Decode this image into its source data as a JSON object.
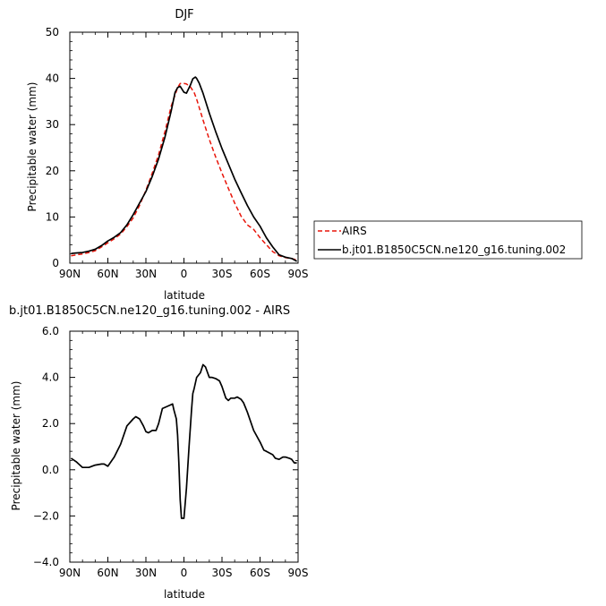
{
  "chart_data": [
    {
      "type": "line",
      "title": "DJF",
      "xlabel": "latitude",
      "ylabel": "Precipitable water (mm)",
      "x_ticks": [
        "90N",
        "60N",
        "30N",
        "0",
        "30S",
        "60S",
        "90S"
      ],
      "x_tick_values": [
        -90,
        -60,
        -30,
        0,
        30,
        60,
        90
      ],
      "xlim": [
        -90,
        90
      ],
      "ylim": [
        0,
        50
      ],
      "y_ticks": [
        0,
        10,
        20,
        30,
        40,
        50
      ],
      "y_tick_labels": [
        "0",
        "10",
        "20",
        "30",
        "40",
        "50"
      ],
      "grid": false,
      "legend_placement": "right",
      "series": [
        {
          "name": "AIRS",
          "color": "#e8150a",
          "style": "dashed",
          "x": [
            -89,
            -85,
            -80,
            -75,
            -70,
            -65,
            -60,
            -55,
            -50,
            -45,
            -40,
            -35,
            -30,
            -25,
            -20,
            -15,
            -10,
            -5,
            -3,
            0,
            2,
            5,
            8,
            10,
            15,
            20,
            25,
            30,
            35,
            40,
            45,
            50,
            55,
            60,
            65,
            70,
            75,
            80,
            85,
            89
          ],
          "y": [
            1.6,
            1.8,
            2.0,
            2.3,
            2.7,
            3.5,
            4.4,
            5.3,
            6.3,
            7.9,
            9.8,
            12.5,
            15.8,
            19.5,
            23.5,
            28.5,
            34.0,
            38.0,
            38.9,
            38.9,
            38.8,
            38.2,
            37.0,
            35.5,
            31.0,
            26.8,
            23.0,
            19.5,
            16.2,
            13.0,
            10.2,
            8.3,
            7.3,
            5.5,
            4.0,
            2.5,
            1.6,
            1.2,
            1.0,
            0.7
          ]
        },
        {
          "name": "b.jt01.B1850C5CN.ne120_g16.tuning.002",
          "color": "#000000",
          "style": "solid",
          "x": [
            -89,
            -85,
            -80,
            -75,
            -70,
            -65,
            -60,
            -55,
            -50,
            -45,
            -40,
            -35,
            -30,
            -25,
            -20,
            -15,
            -10,
            -7,
            -5,
            -3,
            0,
            2,
            5,
            7,
            9,
            10,
            12,
            15,
            20,
            25,
            30,
            35,
            40,
            45,
            50,
            55,
            60,
            65,
            70,
            75,
            80,
            85,
            89
          ],
          "y": [
            2.1,
            2.2,
            2.3,
            2.6,
            3.0,
            3.8,
            4.8,
            5.6,
            6.6,
            8.3,
            10.5,
            13.0,
            15.5,
            18.8,
            22.6,
            27.3,
            33.0,
            37.0,
            38.0,
            38.3,
            37.0,
            36.8,
            38.5,
            39.9,
            40.3,
            40.0,
            39.0,
            36.8,
            32.5,
            28.5,
            24.8,
            21.5,
            18.2,
            15.3,
            12.5,
            10.0,
            8.0,
            5.5,
            3.5,
            1.8,
            1.3,
            1.0,
            0.4
          ]
        }
      ]
    },
    {
      "type": "line",
      "title": "b.jt01.B1850C5CN.ne120_g16.tuning.002 - AIRS",
      "xlabel": "latitude",
      "ylabel": "Precipitable water (mm)",
      "x_ticks": [
        "90N",
        "60N",
        "30N",
        "0",
        "30S",
        "60S",
        "90S"
      ],
      "x_tick_values": [
        -90,
        -60,
        -30,
        0,
        30,
        60,
        90
      ],
      "xlim": [
        -90,
        90
      ],
      "ylim": [
        -4,
        6
      ],
      "y_ticks": [
        -4,
        -2,
        0,
        2,
        4,
        6
      ],
      "y_tick_labels": [
        "−4.0",
        "−2.0",
        "0.0",
        "2.0",
        "4.0",
        "6.0"
      ],
      "grid": false,
      "series": [
        {
          "color": "#000000",
          "style": "solid",
          "x": [
            -89,
            -85,
            -82,
            -80,
            -75,
            -70,
            -65,
            -63,
            -60,
            -55,
            -50,
            -45,
            -40,
            -38,
            -35,
            -32,
            -30,
            -28,
            -25,
            -22,
            -20,
            -17,
            -15,
            -13,
            -11,
            -9,
            -8,
            -6,
            -5,
            -4,
            -3,
            -2,
            0,
            2,
            4,
            6,
            7,
            8,
            10,
            13,
            15,
            17,
            18,
            20,
            22,
            25,
            28,
            30,
            33,
            35,
            37,
            40,
            42,
            45,
            47,
            50,
            55,
            60,
            63,
            65,
            70,
            72,
            75,
            78,
            80,
            83,
            85,
            87,
            89
          ],
          "y": [
            0.5,
            0.35,
            0.2,
            0.1,
            0.1,
            0.2,
            0.25,
            0.25,
            0.15,
            0.55,
            1.1,
            1.9,
            2.2,
            2.3,
            2.2,
            1.9,
            1.65,
            1.6,
            1.7,
            1.7,
            2.0,
            2.65,
            2.7,
            2.75,
            2.8,
            2.85,
            2.6,
            2.2,
            1.5,
            0.3,
            -1.3,
            -2.1,
            -2.1,
            -0.8,
            1.0,
            2.6,
            3.3,
            3.5,
            4.0,
            4.2,
            4.55,
            4.45,
            4.3,
            4.0,
            4.0,
            3.95,
            3.85,
            3.6,
            3.1,
            3.0,
            3.1,
            3.1,
            3.15,
            3.05,
            2.9,
            2.5,
            1.7,
            1.2,
            0.85,
            0.8,
            0.65,
            0.5,
            0.45,
            0.55,
            0.55,
            0.5,
            0.45,
            0.3,
            0.3
          ]
        }
      ]
    }
  ]
}
